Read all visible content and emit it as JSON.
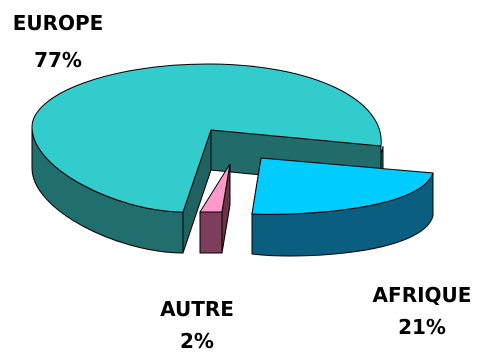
{
  "chart_data": {
    "type": "pie",
    "style": "3d-exploded",
    "slices": [
      {
        "label": "EUROPE",
        "value": 77,
        "pct_label": "77%",
        "top_color": "#33CCCC",
        "side_color": "#216E6E"
      },
      {
        "label": "AFRIQUE",
        "value": 21,
        "pct_label": "21%",
        "top_color": "#00CCFF",
        "side_color": "#0A5F80"
      },
      {
        "label": "AUTRE",
        "value": 2,
        "pct_label": "2%",
        "top_color": "#FF99CC",
        "side_color": "#7E3D5A"
      }
    ]
  }
}
